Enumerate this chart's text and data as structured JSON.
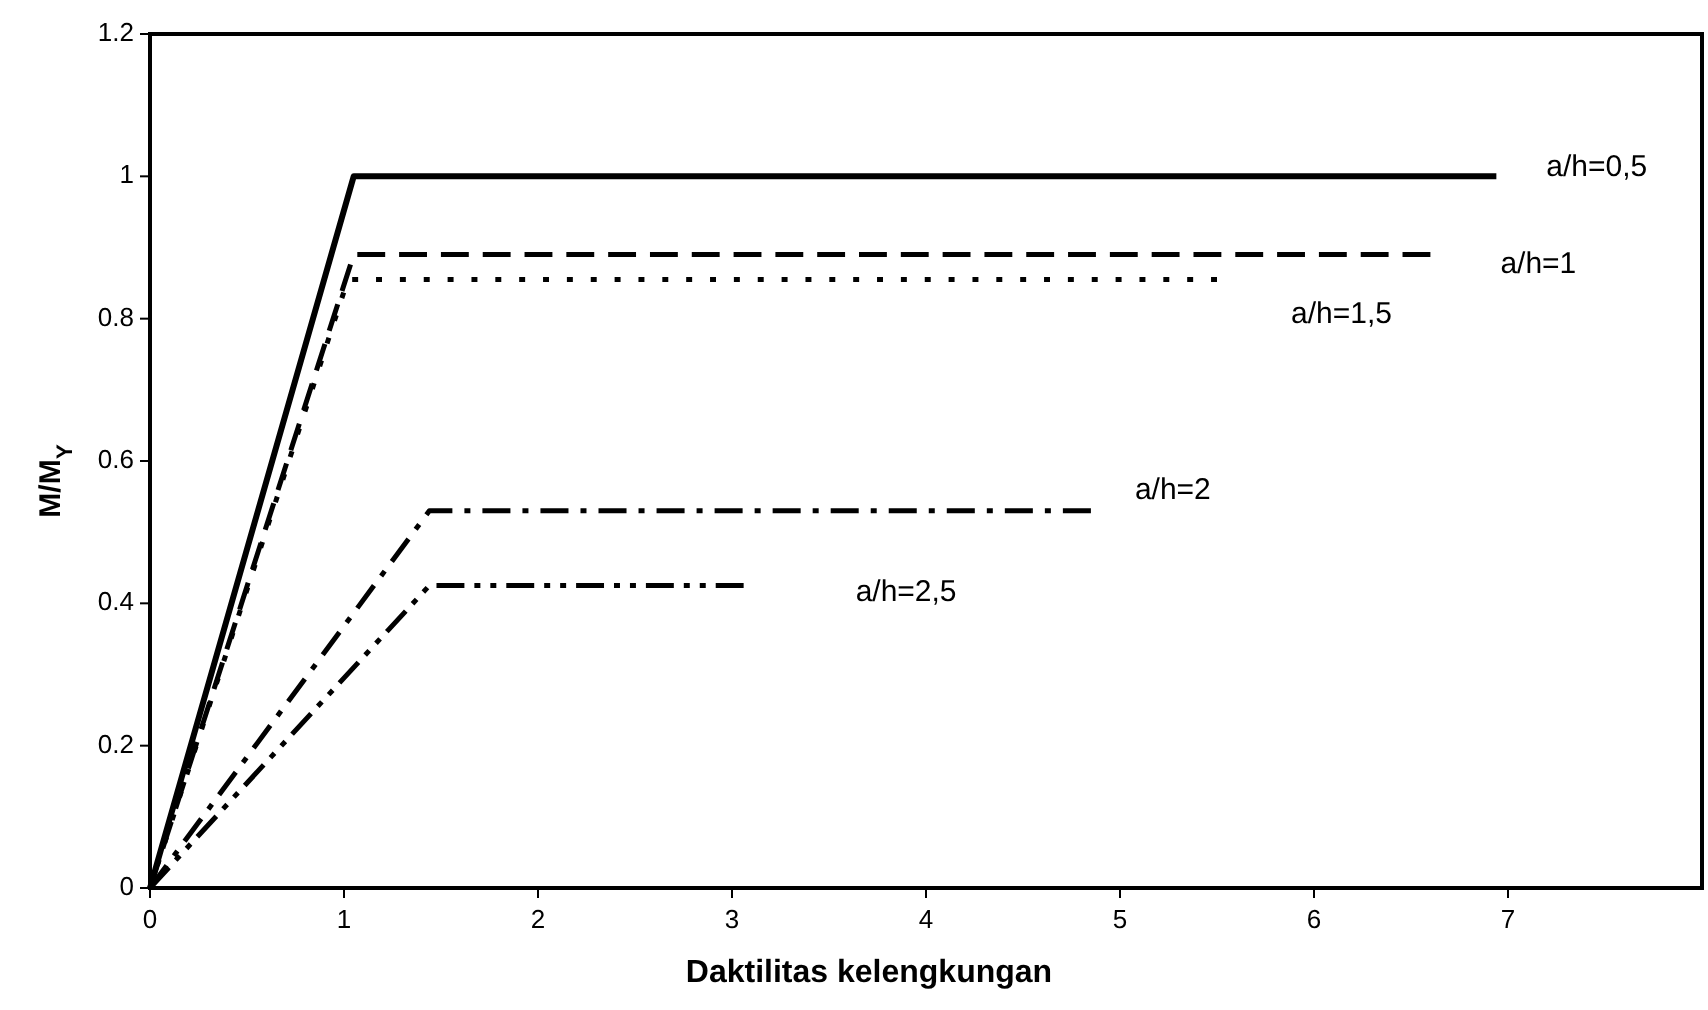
{
  "chart_data": {
    "type": "line",
    "xlabel": "Daktilitas kelengkungan",
    "ylabel": "M/M$_{Y}$",
    "xlim": [
      0,
      8
    ],
    "xticks": [
      0,
      1,
      2,
      3,
      4,
      5,
      6,
      7
    ],
    "ylim": [
      0,
      1.2
    ],
    "yticks": [
      0,
      {
        "value": 0.2,
        "label": "0.2"
      },
      {
        "value": 0.4,
        "label": "0.4"
      },
      {
        "value": 0.6,
        "label": "0.6"
      },
      {
        "value": 0.8,
        "label": "0.8"
      },
      1,
      {
        "value": 1.2,
        "label": "1.2"
      }
    ],
    "grid": false,
    "marker": "none",
    "series": [
      {
        "name": "a/h=0,5",
        "color": "#000000",
        "line_style": "solid",
        "x": [
          0,
          1.05,
          6.94
        ],
        "values": [
          0,
          1,
          1
        ]
      },
      {
        "name": "a/h=1",
        "color": "#000000",
        "line_style": "dashed",
        "x": [
          0,
          1.05,
          6.6
        ],
        "values": [
          0,
          0.89,
          0.89
        ]
      },
      {
        "name": "a/h=1,5",
        "color": "#000000",
        "line_style": "dotted",
        "x": [
          0,
          1.02,
          5.5
        ],
        "values": [
          0,
          0.855,
          0.855
        ]
      },
      {
        "name": "a/h=2",
        "color": "#000000",
        "line_style": "dashdot",
        "x": [
          0,
          1.44,
          4.85
        ],
        "values": [
          0,
          0.53,
          0.53
        ]
      },
      {
        "name": "a/h=2,5",
        "color": "#000000",
        "line_style": "dashdotdot",
        "x": [
          0,
          1.44,
          3.06
        ],
        "values": [
          0,
          0.425,
          0.425
        ]
      }
    ]
  }
}
